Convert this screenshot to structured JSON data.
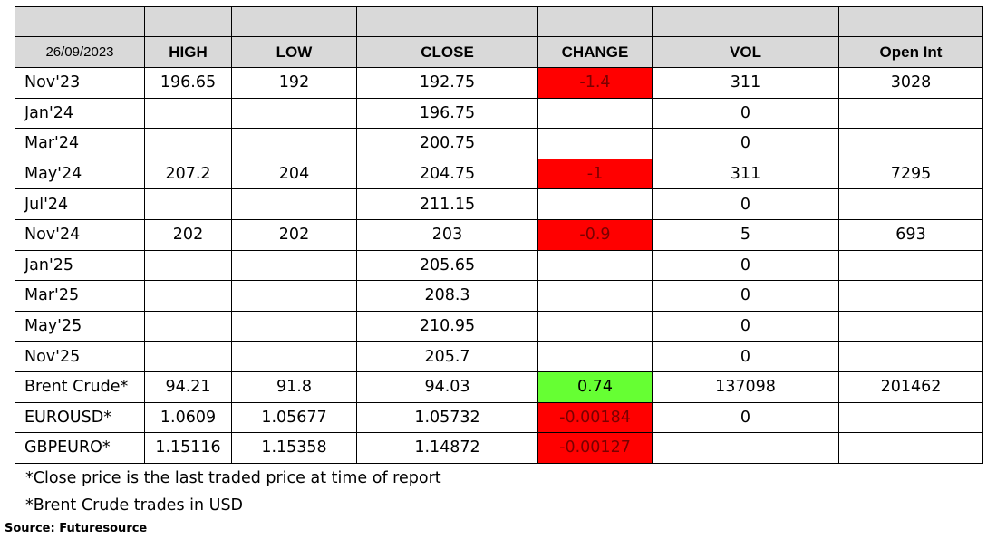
{
  "header": {
    "date": "26/09/2023",
    "high": "HIGH",
    "low": "LOW",
    "close": "CLOSE",
    "change": "CHANGE",
    "vol": "VOL",
    "open_int": "Open Int"
  },
  "rows": [
    {
      "label": "Nov'23",
      "high": "196.65",
      "low": "192",
      "close": "192.75",
      "change": "-1.4",
      "change_status": "neg",
      "vol": "311",
      "open_int": "3028"
    },
    {
      "label": "Jan'24",
      "high": "",
      "low": "",
      "close": "196.75",
      "change": "",
      "change_status": "",
      "vol": "0",
      "open_int": ""
    },
    {
      "label": "Mar'24",
      "high": "",
      "low": "",
      "close": "200.75",
      "change": "",
      "change_status": "",
      "vol": "0",
      "open_int": ""
    },
    {
      "label": "May'24",
      "high": "207.2",
      "low": "204",
      "close": "204.75",
      "change": "-1",
      "change_status": "neg",
      "vol": "311",
      "open_int": "7295"
    },
    {
      "label": "Jul'24",
      "high": "",
      "low": "",
      "close": "211.15",
      "change": "",
      "change_status": "",
      "vol": "0",
      "open_int": ""
    },
    {
      "label": "Nov'24",
      "high": "202",
      "low": "202",
      "close": "203",
      "change": "-0.9",
      "change_status": "neg",
      "vol": "5",
      "open_int": "693"
    },
    {
      "label": "Jan'25",
      "high": "",
      "low": "",
      "close": "205.65",
      "change": "",
      "change_status": "",
      "vol": "0",
      "open_int": ""
    },
    {
      "label": "Mar'25",
      "high": "",
      "low": "",
      "close": "208.3",
      "change": "",
      "change_status": "",
      "vol": "0",
      "open_int": ""
    },
    {
      "label": "May'25",
      "high": "",
      "low": "",
      "close": "210.95",
      "change": "",
      "change_status": "",
      "vol": "0",
      "open_int": ""
    },
    {
      "label": "Nov'25",
      "high": "",
      "low": "",
      "close": "205.7",
      "change": "",
      "change_status": "",
      "vol": "0",
      "open_int": ""
    },
    {
      "label": "Brent Crude*",
      "high": "94.21",
      "low": "91.8",
      "close": "94.03",
      "change": "0.74",
      "change_status": "pos",
      "vol": "137098",
      "open_int": "201462"
    },
    {
      "label": "EUROUSD*",
      "high": "1.0609",
      "low": "1.05677",
      "close": "1.05732",
      "change": "-0.00184",
      "change_status": "neg",
      "vol": "0",
      "open_int": ""
    },
    {
      "label": "GBPEURO*",
      "high": "1.15116",
      "low": "1.15358",
      "close": "1.14872",
      "change": "-0.00127",
      "change_status": "neg",
      "vol": "",
      "open_int": ""
    }
  ],
  "colors": {
    "negative": "#ff0000",
    "positive": "#66ff33",
    "header_bg": "#d9d9d9"
  },
  "notes": [
    "*Close price is the last traded price at time of report",
    "*Brent Crude trades in USD"
  ],
  "source": "Source: Futuresource"
}
